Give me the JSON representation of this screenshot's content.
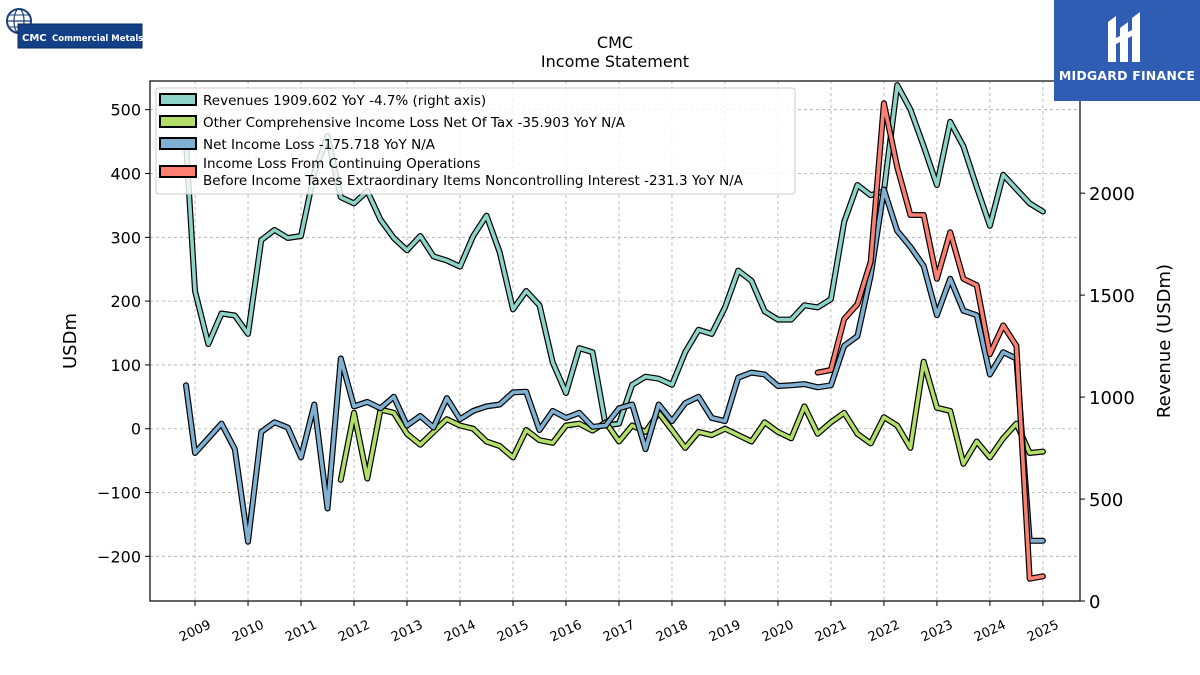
{
  "header": {
    "company_logo_text": "CMC",
    "company_logo_name": "Commercial Metals",
    "brand_name": "MIDGARD FINANCE"
  },
  "chart_data": {
    "type": "line",
    "title": "CMC",
    "subtitle": "Income Statement",
    "ylabel": "USDm",
    "ylabel_right": "Revenue (USDm)",
    "ylim": [
      -270,
      545
    ],
    "ylim_right": [
      0,
      2550
    ],
    "xlim": [
      2008.15,
      2025.7
    ],
    "yticks": [
      -200,
      -100,
      0,
      100,
      200,
      300,
      400,
      500
    ],
    "yticks_right": [
      0,
      500,
      1000,
      1500,
      2000,
      2500
    ],
    "xticks": [
      2009,
      2010,
      2011,
      2012,
      2013,
      2014,
      2015,
      2016,
      2017,
      2018,
      2019,
      2020,
      2021,
      2022,
      2023,
      2024,
      2025
    ],
    "xtick_labels": [
      "2009",
      "2010",
      "2011",
      "2012",
      "2013",
      "2014",
      "2015",
      "2016",
      "2017",
      "2018",
      "2019",
      "2020",
      "2021",
      "2022",
      "2023",
      "2024",
      "2025"
    ],
    "grid": true,
    "legend_position": "top-left",
    "series": [
      {
        "name": "Revenues  1909.602 YoY -4.7% (right axis)",
        "axis": "right",
        "color": "#8dd3c7",
        "x": [
          2008.83,
          2009.0,
          2009.25,
          2009.5,
          2009.75,
          2010.0,
          2010.25,
          2010.5,
          2010.75,
          2011.0,
          2011.25,
          2011.5,
          2011.75,
          2012.0,
          2012.25,
          2012.5,
          2012.75,
          2013.0,
          2013.25,
          2013.5,
          2013.75,
          2014.0,
          2014.25,
          2014.5,
          2014.75,
          2015.0,
          2015.25,
          2015.5,
          2015.75,
          2016.0,
          2016.25,
          2016.5,
          2016.75,
          2017.0,
          2017.25,
          2017.5,
          2017.75,
          2018.0,
          2018.25,
          2018.5,
          2018.75,
          2019.0,
          2019.25,
          2019.5,
          2019.75,
          2020.0,
          2020.25,
          2020.5,
          2020.75,
          2021.0,
          2021.25,
          2021.5,
          2021.75,
          2022.0,
          2022.25,
          2022.5,
          2022.75,
          2023.0,
          2023.25,
          2023.5,
          2023.75,
          2024.0,
          2024.25,
          2024.5,
          2024.75,
          2025.0
        ],
        "values": [
          2250,
          1520,
          1260,
          1410,
          1400,
          1310,
          1770,
          1820,
          1780,
          1790,
          2100,
          2280,
          1980,
          1950,
          2010,
          1870,
          1780,
          1720,
          1790,
          1690,
          1670,
          1640,
          1790,
          1890,
          1710,
          1430,
          1520,
          1450,
          1170,
          1020,
          1240,
          1220,
          860,
          870,
          1060,
          1100,
          1090,
          1060,
          1220,
          1330,
          1310,
          1440,
          1620,
          1570,
          1420,
          1380,
          1380,
          1450,
          1440,
          1480,
          1860,
          2040,
          1990,
          2010,
          2530,
          2410,
          2230,
          2040,
          2350,
          2230,
          2030,
          1840,
          2090,
          2020,
          1950,
          1910
        ]
      },
      {
        "name": "Other Comprehensive Income Loss Net Of Tax  -35.903 YoY N/A",
        "axis": "left",
        "color": "#b3de69",
        "x": [
          2011.75,
          2012.0,
          2012.25,
          2012.5,
          2012.75,
          2013.0,
          2013.25,
          2013.5,
          2013.75,
          2014.0,
          2014.25,
          2014.5,
          2014.75,
          2015.0,
          2015.25,
          2015.5,
          2015.75,
          2016.0,
          2016.25,
          2016.5,
          2016.75,
          2017.0,
          2017.25,
          2017.5,
          2017.75,
          2018.0,
          2018.25,
          2018.5,
          2018.75,
          2019.0,
          2019.25,
          2019.5,
          2019.75,
          2020.0,
          2020.25,
          2020.5,
          2020.75,
          2021.0,
          2021.25,
          2021.5,
          2021.75,
          2022.0,
          2022.25,
          2022.5,
          2022.75,
          2023.0,
          2023.25,
          2023.5,
          2023.75,
          2024.0,
          2024.25,
          2024.5,
          2024.75,
          2025.0
        ],
        "values": [
          -80,
          25,
          -78,
          30,
          25,
          -8,
          -25,
          -5,
          15,
          5,
          0,
          -20,
          -27,
          -45,
          -2,
          -18,
          -22,
          5,
          8,
          -3,
          10,
          -20,
          5,
          -5,
          25,
          -2,
          -30,
          -5,
          -10,
          0,
          -10,
          -20,
          10,
          -5,
          -15,
          35,
          -8,
          10,
          25,
          -8,
          -23,
          18,
          5,
          -30,
          105,
          33,
          28,
          -55,
          -20,
          -45,
          -15,
          8,
          -38,
          -35.9
        ]
      },
      {
        "name": "Net Income Loss  -175.718 YoY N/A",
        "axis": "left",
        "color": "#80b1d3",
        "x": [
          2008.83,
          2009.0,
          2009.25,
          2009.5,
          2009.75,
          2010.0,
          2010.25,
          2010.5,
          2010.75,
          2011.0,
          2011.25,
          2011.5,
          2011.75,
          2012.0,
          2012.25,
          2012.5,
          2012.75,
          2013.0,
          2013.25,
          2013.5,
          2013.75,
          2014.0,
          2014.25,
          2014.5,
          2014.75,
          2015.0,
          2015.25,
          2015.5,
          2015.75,
          2016.0,
          2016.25,
          2016.5,
          2016.75,
          2017.0,
          2017.25,
          2017.5,
          2017.75,
          2018.0,
          2018.25,
          2018.5,
          2018.75,
          2019.0,
          2019.25,
          2019.5,
          2019.75,
          2020.0,
          2020.25,
          2020.5,
          2020.75,
          2021.0,
          2021.25,
          2021.5,
          2021.75,
          2022.0,
          2022.25,
          2022.5,
          2022.75,
          2023.0,
          2023.25,
          2023.5,
          2023.75,
          2024.0,
          2024.25,
          2024.5,
          2024.75,
          2025.0
        ],
        "values": [
          68,
          -38,
          -15,
          8,
          -32,
          -177,
          -5,
          10,
          2,
          -45,
          38,
          -125,
          110,
          35,
          42,
          32,
          50,
          5,
          20,
          2,
          48,
          15,
          28,
          35,
          38,
          57,
          58,
          -2,
          28,
          17,
          25,
          3,
          5,
          32,
          38,
          -32,
          38,
          12,
          40,
          50,
          17,
          12,
          80,
          88,
          85,
          67,
          68,
          70,
          65,
          68,
          130,
          145,
          240,
          375,
          310,
          285,
          255,
          178,
          235,
          185,
          178,
          85,
          120,
          110,
          -175.7,
          -175.7
        ]
      },
      {
        "name": "Income Loss From Continuing Operations\nBefore Income Taxes Extraordinary Items Noncontrolling Interest  -231.3 YoY N/A",
        "axis": "left",
        "color": "#fb8072",
        "x": [
          2020.75,
          2021.0,
          2021.25,
          2021.5,
          2021.75,
          2022.0,
          2022.25,
          2022.5,
          2022.75,
          2023.0,
          2023.25,
          2023.5,
          2023.75,
          2024.0,
          2024.25,
          2024.5,
          2024.75,
          2025.0
        ],
        "values": [
          88,
          92,
          172,
          195,
          262,
          510,
          410,
          335,
          335,
          235,
          308,
          235,
          225,
          117,
          162,
          130,
          -235,
          -231.3
        ]
      }
    ]
  }
}
